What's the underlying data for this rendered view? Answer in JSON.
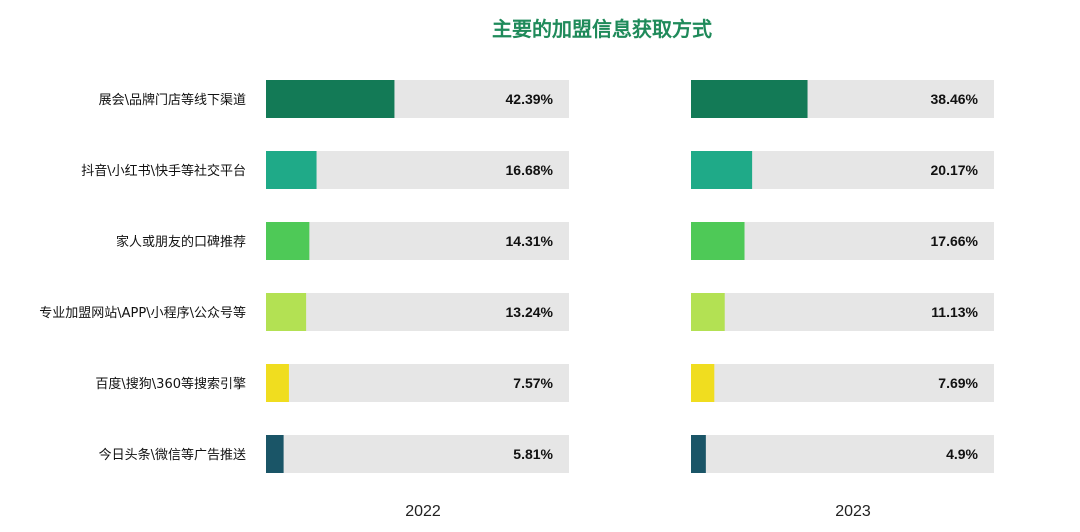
{
  "colors": {
    "title": "#1f8a5a",
    "track": "#e6e6e6",
    "bars": [
      "#137a56",
      "#1faa88",
      "#4ec957",
      "#b3e153",
      "#f0dd1f",
      "#1a5567"
    ]
  },
  "chart_data": {
    "type": "bar",
    "orientation": "horizontal",
    "title": "主要的加盟信息获取方式",
    "categories": [
      "展会\\品牌门店等线下渠道",
      "抖音\\小红书\\快手等社交平台",
      "家人或朋友的口碑推荐",
      "专业加盟网站\\APP\\小程序\\公众号等",
      "百度\\搜狗\\360等搜索引擎",
      "今日头条\\微信等广告推送"
    ],
    "series": [
      {
        "name": "2022",
        "values": [
          42.39,
          16.68,
          14.31,
          13.24,
          7.57,
          5.81
        ],
        "labels": [
          "42.39%",
          "16.68%",
          "14.31%",
          "13.24%",
          "7.57%",
          "5.81%"
        ]
      },
      {
        "name": "2023",
        "values": [
          38.46,
          20.17,
          17.66,
          11.13,
          7.69,
          4.9
        ],
        "labels": [
          "38.46%",
          "20.17%",
          "17.66%",
          "11.13%",
          "7.69%",
          "4.9%"
        ]
      }
    ],
    "xlim": [
      0,
      100
    ],
    "unit": "%",
    "grid": false,
    "legend": "none"
  }
}
